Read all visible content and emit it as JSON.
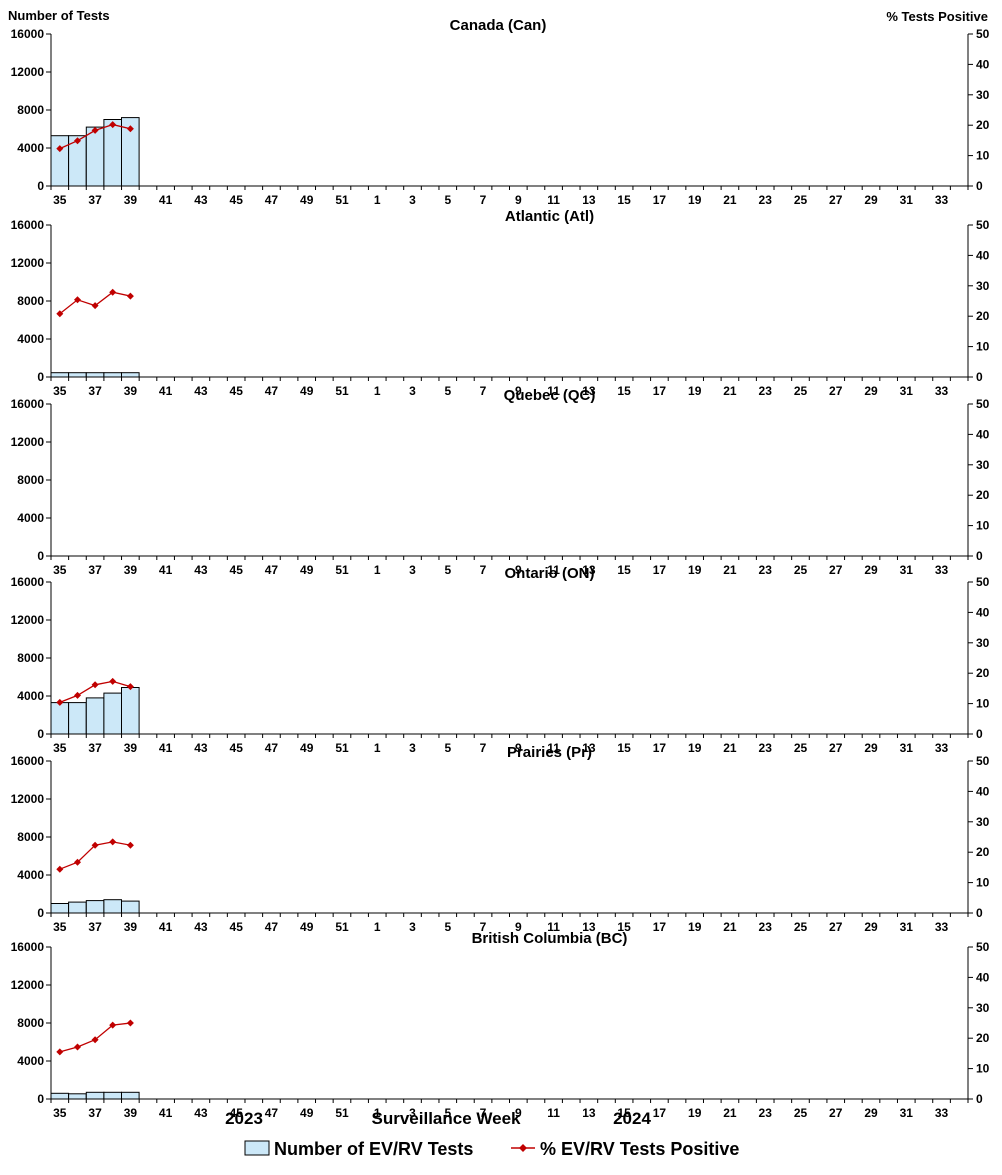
{
  "header": {
    "left_axis_title": "Number of Tests",
    "right_axis_title": "%  Tests Positive"
  },
  "footer": {
    "year_left": "2023",
    "xlabel": "Surveillance Week",
    "year_right": "2024"
  },
  "legend": {
    "bar_label": "Number of EV/RV Tests",
    "line_label": "% EV/RV Tests Positive"
  },
  "colors": {
    "bar_fill": "#cce8f8",
    "bar_stroke": "#000000",
    "line": "#c00000"
  },
  "chart_data": [
    {
      "type": "bar",
      "title": "Canada (Can)",
      "weeks": [
        35,
        36,
        37,
        38,
        39,
        40,
        41,
        42,
        43,
        44,
        45,
        46,
        47,
        48,
        49,
        50,
        51,
        52,
        1,
        2,
        3,
        4,
        5,
        6,
        7,
        8,
        9,
        10,
        11,
        12,
        13,
        14,
        15,
        16,
        17,
        18,
        19,
        20,
        21,
        22,
        23,
        24,
        25,
        26,
        27,
        28,
        29,
        30,
        31,
        32,
        33,
        34
      ],
      "x_tick_labels": [
        "35",
        "37",
        "39",
        "41",
        "43",
        "45",
        "47",
        "49",
        "51",
        "1",
        "3",
        "5",
        "7",
        "9",
        "11",
        "13",
        "15",
        "17",
        "19",
        "21",
        "23",
        "25",
        "27",
        "29",
        "31",
        "33"
      ],
      "ylim_left": [
        0,
        16000
      ],
      "ylim_right": [
        0,
        50
      ],
      "yticks_left": [
        "0",
        "4000",
        "8000",
        "12000",
        "16000"
      ],
      "yticks_right": [
        "0",
        "10",
        "20",
        "30",
        "40",
        "50"
      ],
      "series": [
        {
          "name": "Number of EV/RV Tests",
          "type": "bar",
          "axis": "left",
          "values": [
            5300,
            5300,
            6200,
            7000,
            7200
          ]
        },
        {
          "name": "% EV/RV Tests Positive",
          "type": "line",
          "axis": "right",
          "values": [
            12.3,
            14.9,
            18.3,
            20.2,
            18.8
          ]
        }
      ]
    },
    {
      "type": "bar",
      "title": "Atlantic (Atl)",
      "weeks": [
        35,
        36,
        37,
        38,
        39,
        40,
        41,
        42,
        43,
        44,
        45,
        46,
        47,
        48,
        49,
        50,
        51,
        52,
        1,
        2,
        3,
        4,
        5,
        6,
        7,
        8,
        9,
        10,
        11,
        12,
        13,
        14,
        15,
        16,
        17,
        18,
        19,
        20,
        21,
        22,
        23,
        24,
        25,
        26,
        27,
        28,
        29,
        30,
        31,
        32,
        33,
        34
      ],
      "x_tick_labels": [
        "35",
        "37",
        "39",
        "41",
        "43",
        "45",
        "47",
        "49",
        "51",
        "1",
        "3",
        "5",
        "7",
        "9",
        "11",
        "13",
        "15",
        "17",
        "19",
        "21",
        "23",
        "25",
        "27",
        "29",
        "31",
        "33"
      ],
      "ylim_left": [
        0,
        16000
      ],
      "ylim_right": [
        0,
        50
      ],
      "yticks_left": [
        "0",
        "4000",
        "8000",
        "12000",
        "16000"
      ],
      "yticks_right": [
        "0",
        "10",
        "20",
        "30",
        "40",
        "50"
      ],
      "series": [
        {
          "name": "Number of EV/RV Tests",
          "type": "bar",
          "axis": "left",
          "values": [
            450,
            450,
            450,
            450,
            450
          ]
        },
        {
          "name": "% EV/RV Tests Positive",
          "type": "line",
          "axis": "right",
          "values": [
            20.8,
            25.4,
            23.5,
            27.9,
            26.6
          ]
        }
      ]
    },
    {
      "type": "bar",
      "title": "Quebec (QC)",
      "weeks": [
        35,
        36,
        37,
        38,
        39,
        40,
        41,
        42,
        43,
        44,
        45,
        46,
        47,
        48,
        49,
        50,
        51,
        52,
        1,
        2,
        3,
        4,
        5,
        6,
        7,
        8,
        9,
        10,
        11,
        12,
        13,
        14,
        15,
        16,
        17,
        18,
        19,
        20,
        21,
        22,
        23,
        24,
        25,
        26,
        27,
        28,
        29,
        30,
        31,
        32,
        33,
        34
      ],
      "x_tick_labels": [
        "35",
        "37",
        "39",
        "41",
        "43",
        "45",
        "47",
        "49",
        "51",
        "1",
        "3",
        "5",
        "7",
        "9",
        "11",
        "13",
        "15",
        "17",
        "19",
        "21",
        "23",
        "25",
        "27",
        "29",
        "31",
        "33"
      ],
      "ylim_left": [
        0,
        16000
      ],
      "ylim_right": [
        0,
        50
      ],
      "yticks_left": [
        "0",
        "4000",
        "8000",
        "12000",
        "16000"
      ],
      "yticks_right": [
        "0",
        "10",
        "20",
        "30",
        "40",
        "50"
      ],
      "series": [
        {
          "name": "Number of EV/RV Tests",
          "type": "bar",
          "axis": "left",
          "values": []
        },
        {
          "name": "% EV/RV Tests Positive",
          "type": "line",
          "axis": "right",
          "values": []
        }
      ]
    },
    {
      "type": "bar",
      "title": "Ontario (ON)",
      "weeks": [
        35,
        36,
        37,
        38,
        39,
        40,
        41,
        42,
        43,
        44,
        45,
        46,
        47,
        48,
        49,
        50,
        51,
        52,
        1,
        2,
        3,
        4,
        5,
        6,
        7,
        8,
        9,
        10,
        11,
        12,
        13,
        14,
        15,
        16,
        17,
        18,
        19,
        20,
        21,
        22,
        23,
        24,
        25,
        26,
        27,
        28,
        29,
        30,
        31,
        32,
        33,
        34
      ],
      "x_tick_labels": [
        "35",
        "37",
        "39",
        "41",
        "43",
        "45",
        "47",
        "49",
        "51",
        "1",
        "3",
        "5",
        "7",
        "9",
        "11",
        "13",
        "15",
        "17",
        "19",
        "21",
        "23",
        "25",
        "27",
        "29",
        "31",
        "33"
      ],
      "ylim_left": [
        0,
        16000
      ],
      "ylim_right": [
        0,
        50
      ],
      "yticks_left": [
        "0",
        "4000",
        "8000",
        "12000",
        "16000"
      ],
      "yticks_right": [
        "0",
        "10",
        "20",
        "30",
        "40",
        "50"
      ],
      "series": [
        {
          "name": "Number of EV/RV Tests",
          "type": "bar",
          "axis": "left",
          "values": [
            3300,
            3300,
            3800,
            4300,
            4900
          ]
        },
        {
          "name": "% EV/RV Tests Positive",
          "type": "line",
          "axis": "right",
          "values": [
            10.4,
            12.7,
            16.2,
            17.3,
            15.6
          ]
        }
      ]
    },
    {
      "type": "bar",
      "title": "Prairies (Pr)",
      "weeks": [
        35,
        36,
        37,
        38,
        39,
        40,
        41,
        42,
        43,
        44,
        45,
        46,
        47,
        48,
        49,
        50,
        51,
        52,
        1,
        2,
        3,
        4,
        5,
        6,
        7,
        8,
        9,
        10,
        11,
        12,
        13,
        14,
        15,
        16,
        17,
        18,
        19,
        20,
        21,
        22,
        23,
        24,
        25,
        26,
        27,
        28,
        29,
        30,
        31,
        32,
        33,
        34
      ],
      "x_tick_labels": [
        "35",
        "37",
        "39",
        "41",
        "43",
        "45",
        "47",
        "49",
        "51",
        "1",
        "3",
        "5",
        "7",
        "9",
        "11",
        "13",
        "15",
        "17",
        "19",
        "21",
        "23",
        "25",
        "27",
        "29",
        "31",
        "33"
      ],
      "ylim_left": [
        0,
        16000
      ],
      "ylim_right": [
        0,
        50
      ],
      "yticks_left": [
        "0",
        "4000",
        "8000",
        "12000",
        "16000"
      ],
      "yticks_right": [
        "0",
        "10",
        "20",
        "30",
        "40",
        "50"
      ],
      "series": [
        {
          "name": "Number of EV/RV Tests",
          "type": "bar",
          "axis": "left",
          "values": [
            1000,
            1150,
            1300,
            1400,
            1250
          ]
        },
        {
          "name": "% EV/RV Tests Positive",
          "type": "line",
          "axis": "right",
          "values": [
            14.4,
            16.7,
            22.3,
            23.4,
            22.3
          ]
        }
      ]
    },
    {
      "type": "bar",
      "title": "British Columbia (BC)",
      "weeks": [
        35,
        36,
        37,
        38,
        39,
        40,
        41,
        42,
        43,
        44,
        45,
        46,
        47,
        48,
        49,
        50,
        51,
        52,
        1,
        2,
        3,
        4,
        5,
        6,
        7,
        8,
        9,
        10,
        11,
        12,
        13,
        14,
        15,
        16,
        17,
        18,
        19,
        20,
        21,
        22,
        23,
        24,
        25,
        26,
        27,
        28,
        29,
        30,
        31,
        32,
        33,
        34
      ],
      "x_tick_labels": [
        "35",
        "37",
        "39",
        "41",
        "43",
        "45",
        "47",
        "49",
        "51",
        "1",
        "3",
        "5",
        "7",
        "9",
        "11",
        "13",
        "15",
        "17",
        "19",
        "21",
        "23",
        "25",
        "27",
        "29",
        "31",
        "33"
      ],
      "ylim_left": [
        0,
        16000
      ],
      "ylim_right": [
        0,
        50
      ],
      "yticks_left": [
        "0",
        "4000",
        "8000",
        "12000",
        "16000"
      ],
      "yticks_right": [
        "0",
        "10",
        "20",
        "30",
        "40",
        "50"
      ],
      "series": [
        {
          "name": "Number of EV/RV Tests",
          "type": "bar",
          "axis": "left",
          "values": [
            600,
            550,
            700,
            700,
            700
          ]
        },
        {
          "name": "% EV/RV Tests Positive",
          "type": "line",
          "axis": "right",
          "values": [
            15.5,
            17.1,
            19.5,
            24.3,
            25.0
          ]
        }
      ]
    }
  ]
}
